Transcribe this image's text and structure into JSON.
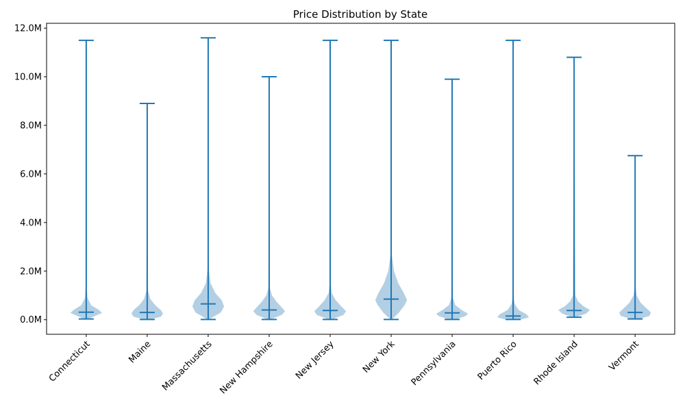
{
  "chart_data": {
    "type": "violin",
    "title": "Price Distribution by State",
    "xlabel": "",
    "ylabel": "",
    "ylim": [
      -600000,
      12200000
    ],
    "yticks": [
      0,
      2000000,
      4000000,
      6000000,
      8000000,
      10000000,
      12000000
    ],
    "ytick_labels": [
      "0.0M",
      "2.0M",
      "4.0M",
      "6.0M",
      "8.0M",
      "10.0M",
      "12.0M"
    ],
    "grid": false,
    "legend": "none",
    "colors": {
      "line": "#1f77b4",
      "body": "#b3cfe4",
      "axis": "#000000"
    },
    "categories": [
      "Connecticut",
      "Maine",
      "Massachusetts",
      "New Hampshire",
      "New Jersey",
      "New York",
      "Pennsylvania",
      "Puerto Rico",
      "Rhode Island",
      "Vermont"
    ],
    "series": [
      {
        "category": "Connecticut",
        "min": 30000,
        "max": 11500000,
        "median": 310000,
        "density": [
          [
            30000,
            0.1
          ],
          [
            150000,
            0.55
          ],
          [
            280000,
            1.0
          ],
          [
            400000,
            0.8
          ],
          [
            600000,
            0.3
          ],
          [
            900000,
            0.08
          ],
          [
            1500000,
            0.02
          ],
          [
            11500000,
            0.0
          ]
        ]
      },
      {
        "category": "Maine",
        "min": 10000,
        "max": 8900000,
        "median": 300000,
        "density": [
          [
            10000,
            0.15
          ],
          [
            120000,
            0.85
          ],
          [
            250000,
            1.0
          ],
          [
            400000,
            0.85
          ],
          [
            600000,
            0.5
          ],
          [
            850000,
            0.2
          ],
          [
            1200000,
            0.05
          ],
          [
            8900000,
            0.0
          ]
        ]
      },
      {
        "category": "Massachusetts",
        "min": 10000,
        "max": 11600000,
        "median": 650000,
        "density": [
          [
            10000,
            0.05
          ],
          [
            300000,
            0.8
          ],
          [
            550000,
            1.0
          ],
          [
            800000,
            0.85
          ],
          [
            1100000,
            0.45
          ],
          [
            1500000,
            0.15
          ],
          [
            2000000,
            0.05
          ],
          [
            3000000,
            0.01
          ],
          [
            11600000,
            0.0
          ]
        ]
      },
      {
        "category": "New Hampshire",
        "min": 10000,
        "max": 10000000,
        "median": 400000,
        "density": [
          [
            10000,
            0.08
          ],
          [
            200000,
            0.8
          ],
          [
            350000,
            1.0
          ],
          [
            500000,
            0.8
          ],
          [
            750000,
            0.45
          ],
          [
            1000000,
            0.18
          ],
          [
            1300000,
            0.05
          ],
          [
            10000000,
            0.0
          ]
        ]
      },
      {
        "category": "New Jersey",
        "min": 10000,
        "max": 11500000,
        "median": 380000,
        "density": [
          [
            10000,
            0.1
          ],
          [
            200000,
            0.85
          ],
          [
            350000,
            1.0
          ],
          [
            550000,
            0.7
          ],
          [
            800000,
            0.35
          ],
          [
            1100000,
            0.1
          ],
          [
            1500000,
            0.03
          ],
          [
            11500000,
            0.0
          ]
        ]
      },
      {
        "category": "New York",
        "min": 10000,
        "max": 11500000,
        "median": 850000,
        "density": [
          [
            10000,
            0.05
          ],
          [
            300000,
            0.5
          ],
          [
            600000,
            0.85
          ],
          [
            800000,
            1.0
          ],
          [
            1100000,
            0.8
          ],
          [
            1500000,
            0.45
          ],
          [
            2000000,
            0.18
          ],
          [
            2700000,
            0.04
          ],
          [
            11500000,
            0.0
          ]
        ]
      },
      {
        "category": "Pennsylvania",
        "min": 10000,
        "max": 9900000,
        "median": 280000,
        "density": [
          [
            10000,
            0.2
          ],
          [
            150000,
            0.85
          ],
          [
            250000,
            1.0
          ],
          [
            400000,
            0.6
          ],
          [
            600000,
            0.2
          ],
          [
            900000,
            0.05
          ],
          [
            9900000,
            0.0
          ]
        ]
      },
      {
        "category": "Puerto Rico",
        "min": 10000,
        "max": 11500000,
        "median": 150000,
        "density": [
          [
            10000,
            0.5
          ],
          [
            100000,
            1.0
          ],
          [
            220000,
            0.85
          ],
          [
            400000,
            0.35
          ],
          [
            650000,
            0.1
          ],
          [
            1000000,
            0.02
          ],
          [
            11500000,
            0.0
          ]
        ]
      },
      {
        "category": "Rhode Island",
        "min": 100000,
        "max": 10800000,
        "median": 380000,
        "density": [
          [
            100000,
            0.1
          ],
          [
            250000,
            0.75
          ],
          [
            400000,
            1.0
          ],
          [
            550000,
            0.6
          ],
          [
            750000,
            0.25
          ],
          [
            1000000,
            0.08
          ],
          [
            10800000,
            0.0
          ]
        ]
      },
      {
        "category": "Vermont",
        "min": 30000,
        "max": 6750000,
        "median": 300000,
        "density": [
          [
            30000,
            0.2
          ],
          [
            150000,
            0.9
          ],
          [
            300000,
            1.0
          ],
          [
            450000,
            0.75
          ],
          [
            700000,
            0.35
          ],
          [
            1000000,
            0.1
          ],
          [
            1400000,
            0.02
          ],
          [
            6750000,
            0.0
          ]
        ]
      }
    ]
  }
}
